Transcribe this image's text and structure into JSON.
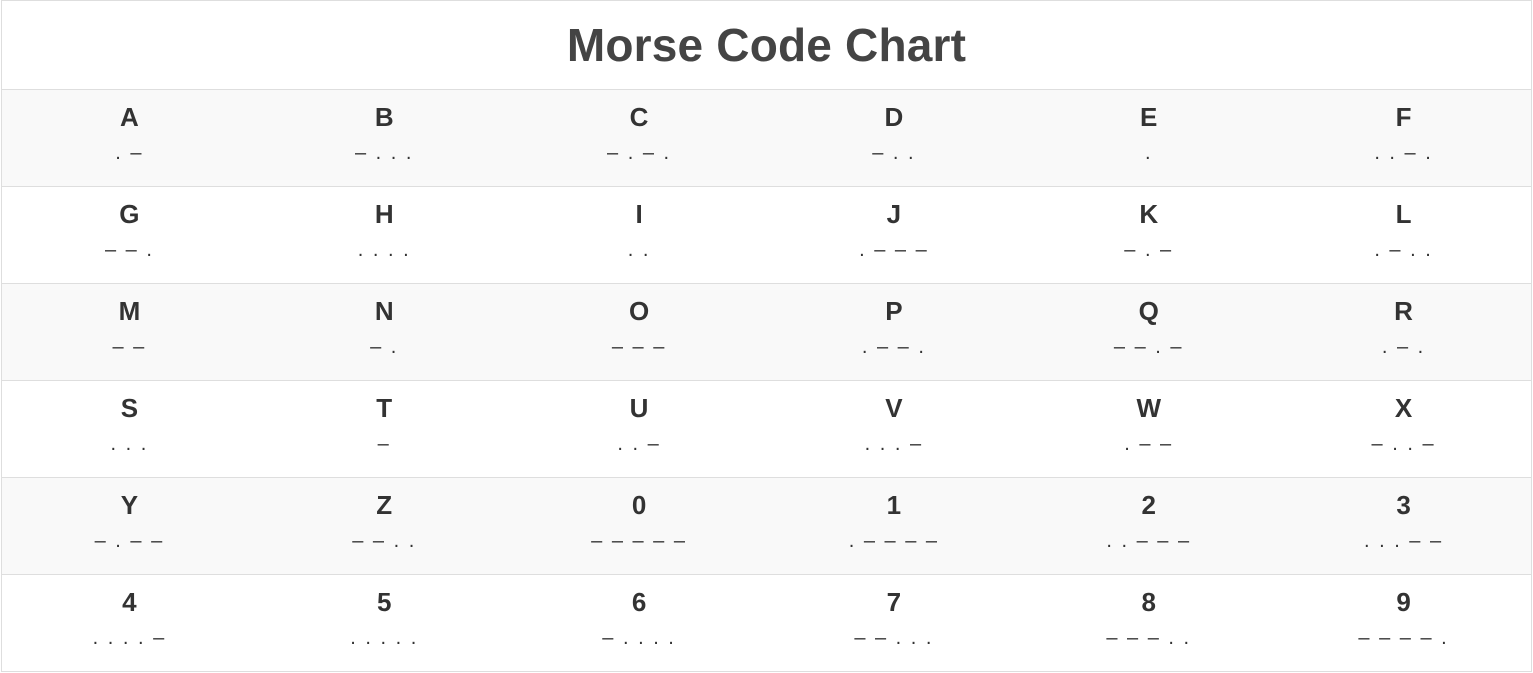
{
  "title": "Morse Code Chart",
  "rows": [
    [
      {
        "char": "A",
        "code": ". –"
      },
      {
        "char": "B",
        "code": "– . . ."
      },
      {
        "char": "C",
        "code": "– . – ."
      },
      {
        "char": "D",
        "code": "– . ."
      },
      {
        "char": "E",
        "code": "."
      },
      {
        "char": "F",
        "code": ". . – ."
      }
    ],
    [
      {
        "char": "G",
        "code": "– – ."
      },
      {
        "char": "H",
        "code": ". . . ."
      },
      {
        "char": "I",
        "code": ". ."
      },
      {
        "char": "J",
        "code": ". – – –"
      },
      {
        "char": "K",
        "code": "– . –"
      },
      {
        "char": "L",
        "code": ". – . ."
      }
    ],
    [
      {
        "char": "M",
        "code": "– –"
      },
      {
        "char": "N",
        "code": "– ."
      },
      {
        "char": "O",
        "code": "– – –"
      },
      {
        "char": "P",
        "code": ". – – ."
      },
      {
        "char": "Q",
        "code": "– – . –"
      },
      {
        "char": "R",
        "code": ". – ."
      }
    ],
    [
      {
        "char": "S",
        "code": ". . ."
      },
      {
        "char": "T",
        "code": "–"
      },
      {
        "char": "U",
        "code": ". . –"
      },
      {
        "char": "V",
        "code": ". . . –"
      },
      {
        "char": "W",
        "code": ". – –"
      },
      {
        "char": "X",
        "code": "– . . –"
      }
    ],
    [
      {
        "char": "Y",
        "code": "– . – –"
      },
      {
        "char": "Z",
        "code": "– – . ."
      },
      {
        "char": "0",
        "code": "– – – – –"
      },
      {
        "char": "1",
        "code": ". – – – –"
      },
      {
        "char": "2",
        "code": ". . – – –"
      },
      {
        "char": "3",
        "code": ". . . – –"
      }
    ],
    [
      {
        "char": "4",
        "code": ". . . . –"
      },
      {
        "char": "5",
        "code": ". . . . ."
      },
      {
        "char": "6",
        "code": "– . . . ."
      },
      {
        "char": "7",
        "code": "– – . . ."
      },
      {
        "char": "8",
        "code": "– – – . ."
      },
      {
        "char": "9",
        "code": "– – – – ."
      }
    ]
  ]
}
